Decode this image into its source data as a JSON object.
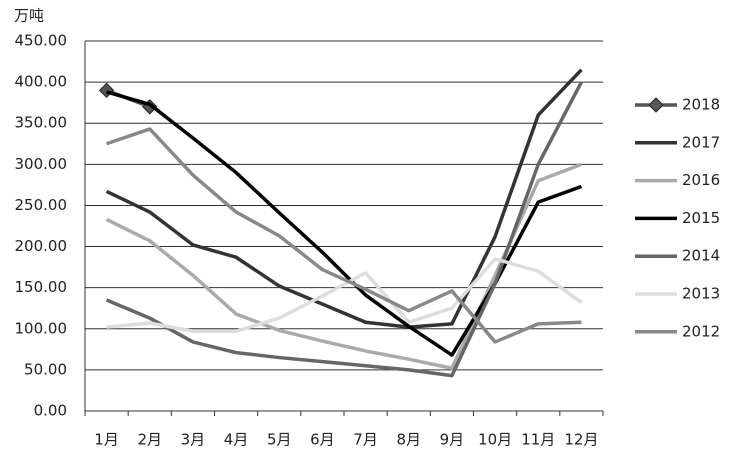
{
  "chart_data": {
    "type": "line",
    "y_label": "万吨",
    "categories": [
      "1月",
      "2月",
      "3月",
      "4月",
      "5月",
      "6月",
      "7月",
      "8月",
      "9月",
      "10月",
      "11月",
      "12月"
    ],
    "series": [
      {
        "name": "2018",
        "color": "#555555",
        "marker": "diamond",
        "values": [
          390,
          370,
          null,
          null,
          null,
          null,
          null,
          null,
          null,
          null,
          null,
          null
        ]
      },
      {
        "name": "2017",
        "color": "#333333",
        "values": [
          267,
          242,
          202,
          187,
          152,
          130,
          108,
          102,
          106,
          212,
          360,
          415
        ]
      },
      {
        "name": "2016",
        "color": "#aaaaaa",
        "values": [
          233,
          207,
          165,
          118,
          98,
          85,
          73,
          63,
          52,
          165,
          280,
          300
        ]
      },
      {
        "name": "2015",
        "color": "#000000",
        "values": [
          388,
          373,
          332,
          290,
          241,
          193,
          141,
          103,
          68,
          155,
          254,
          273
        ]
      },
      {
        "name": "2014",
        "color": "#666666",
        "values": [
          135,
          113,
          84,
          71,
          65,
          60,
          55,
          50,
          43,
          155,
          300,
          400
        ]
      },
      {
        "name": "2013",
        "color": "#dddddd",
        "values": [
          102,
          107,
          97,
          97,
          113,
          140,
          168,
          108,
          125,
          185,
          170,
          132
        ]
      },
      {
        "name": "2012",
        "color": "#888888",
        "values": [
          325,
          343,
          287,
          242,
          213,
          172,
          148,
          122,
          146,
          84,
          106,
          108
        ]
      }
    ],
    "ylim": [
      0,
      450
    ],
    "yticks": [
      {
        "value": 0,
        "label": "0.00"
      },
      {
        "value": 50,
        "label": "50.00"
      },
      {
        "value": 100,
        "label": "100.00"
      },
      {
        "value": 150,
        "label": "150.00"
      },
      {
        "value": 200,
        "label": "200.00"
      },
      {
        "value": 250,
        "label": "250.00"
      },
      {
        "value": 300,
        "label": "300.00"
      },
      {
        "value": 350,
        "label": "350.00"
      },
      {
        "value": 400,
        "label": "400.00"
      },
      {
        "value": 450,
        "label": "450.00"
      }
    ],
    "grid": true
  }
}
